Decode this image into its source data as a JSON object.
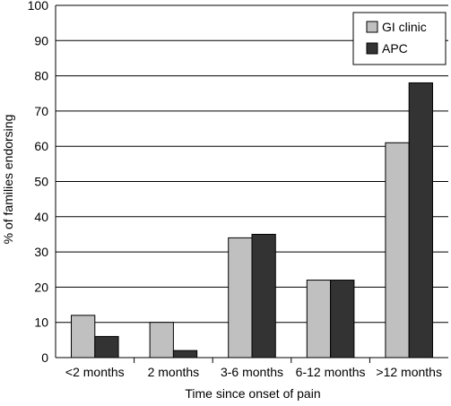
{
  "chart_data": {
    "type": "bar",
    "title": "",
    "xlabel": "Time since onset of pain",
    "ylabel": "% of families endorsing",
    "ylim": [
      0,
      100
    ],
    "yticks": [
      "0",
      "10",
      "20",
      "30",
      "40",
      "50",
      "60",
      "70",
      "80",
      "90",
      "100"
    ],
    "categories": [
      "<2 months",
      "2 months",
      "3-6 months",
      "6-12 months",
      ">12 months"
    ],
    "series": [
      {
        "name": "GI clinic",
        "values": [
          12,
          10,
          34,
          22,
          61
        ],
        "color": "#c0c0c0"
      },
      {
        "name": "APC",
        "values": [
          6,
          2,
          35,
          22,
          78
        ],
        "color": "#333333"
      }
    ],
    "grid": true,
    "legend_position": "top-right"
  }
}
